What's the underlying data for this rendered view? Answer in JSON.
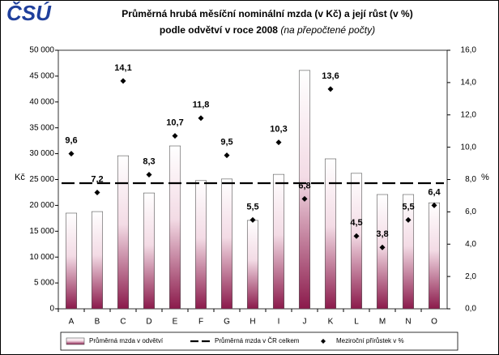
{
  "logo": "ČSÚ",
  "chart_data": {
    "type": "bar",
    "title": "Průměrná hrubá měsíční nominální mzda (v Kč) a její růst (v %)",
    "subtitle": "podle odvětví v roce 2008",
    "subtitle_note": "(na přepočtené počty)",
    "ylabel": "Kč",
    "y2label": "%",
    "categories": [
      "A",
      "B",
      "C",
      "D",
      "E",
      "F",
      "G",
      "H",
      "I",
      "J",
      "K",
      "L",
      "M",
      "N",
      "O"
    ],
    "series": [
      {
        "name": "Průměrná mzda v odvětví",
        "type": "bar",
        "color": "#8b1a4b",
        "values": [
          18500,
          18800,
          29600,
          22400,
          31500,
          24800,
          25100,
          17100,
          26000,
          46100,
          29000,
          26200,
          22100,
          22100,
          20500
        ]
      },
      {
        "name": "Průměrná mzda v ČR celkem",
        "type": "hline",
        "color": "#000000",
        "value": 24300
      },
      {
        "name": "Meziroční přírůstek v %",
        "type": "scatter",
        "axis": "y2",
        "color": "#000000",
        "values": [
          9.6,
          7.2,
          14.1,
          8.3,
          10.7,
          11.8,
          9.5,
          5.5,
          10.3,
          6.8,
          13.6,
          4.5,
          3.8,
          5.5,
          6.4
        ],
        "value_labels": [
          "9,6",
          "7,2",
          "14,1",
          "8,3",
          "10,7",
          "11,8",
          "9,5",
          "5,5",
          "10,3",
          "6,8",
          "13,6",
          "4,5",
          "3,8",
          "5,5",
          "6,4"
        ]
      }
    ],
    "ylim": [
      0,
      50000
    ],
    "yticks": [
      0,
      {
        "value": 5000,
        "label": "5 000"
      },
      {
        "value": 10000,
        "label": "10 000"
      },
      {
        "value": 15000,
        "label": "15 000"
      },
      {
        "value": 20000,
        "label": "20 000"
      },
      {
        "value": 25000,
        "label": "25 000"
      },
      {
        "value": 30000,
        "label": "30 000"
      },
      {
        "value": 35000,
        "label": "35 000"
      },
      {
        "value": 40000,
        "label": "40 000"
      },
      {
        "value": 45000,
        "label": "45 000"
      },
      {
        "value": 50000,
        "label": "50 000"
      }
    ],
    "y2lim": [
      0,
      16
    ],
    "y2ticks": [
      {
        "value": 0,
        "label": "0,0"
      },
      {
        "value": 2,
        "label": "2,0"
      },
      {
        "value": 4,
        "label": "4,0"
      },
      {
        "value": 6,
        "label": "6,0"
      },
      {
        "value": 8,
        "label": "8,0"
      },
      {
        "value": 10,
        "label": "10,0"
      },
      {
        "value": 12,
        "label": "12,0"
      },
      {
        "value": 14,
        "label": "14,0"
      },
      {
        "value": 16,
        "label": "16,0"
      }
    ]
  }
}
